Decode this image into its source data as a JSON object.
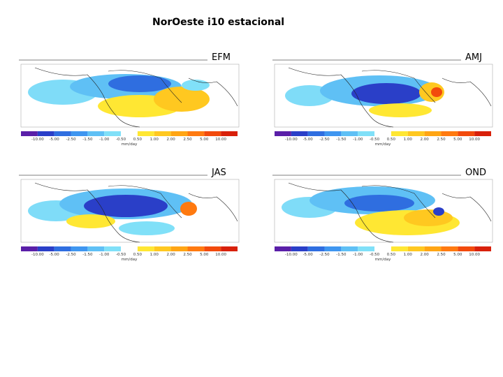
{
  "title": "NorOeste i10 estacional",
  "colorbar": {
    "ticks": [
      "-10.00",
      "-5.00",
      "-2.50",
      "-1.50",
      "-1.00",
      "-0.50",
      "0.50",
      "1.00",
      "2.00",
      "2.50",
      "5.00",
      "10.00"
    ],
    "unit": "mm/day",
    "colors": [
      "#5a1fa8",
      "#2a3fc8",
      "#2f6ee0",
      "#3f96f0",
      "#5fc0f5",
      "#80e0f8",
      "#ffffff",
      "#ffe733",
      "#ffc820",
      "#ffa514",
      "#ff7a10",
      "#f24a0c",
      "#d8200a"
    ]
  },
  "panels": [
    {
      "label": "EFM"
    },
    {
      "label": "AMJ"
    },
    {
      "label": "JAS"
    },
    {
      "label": "OND"
    }
  ]
}
